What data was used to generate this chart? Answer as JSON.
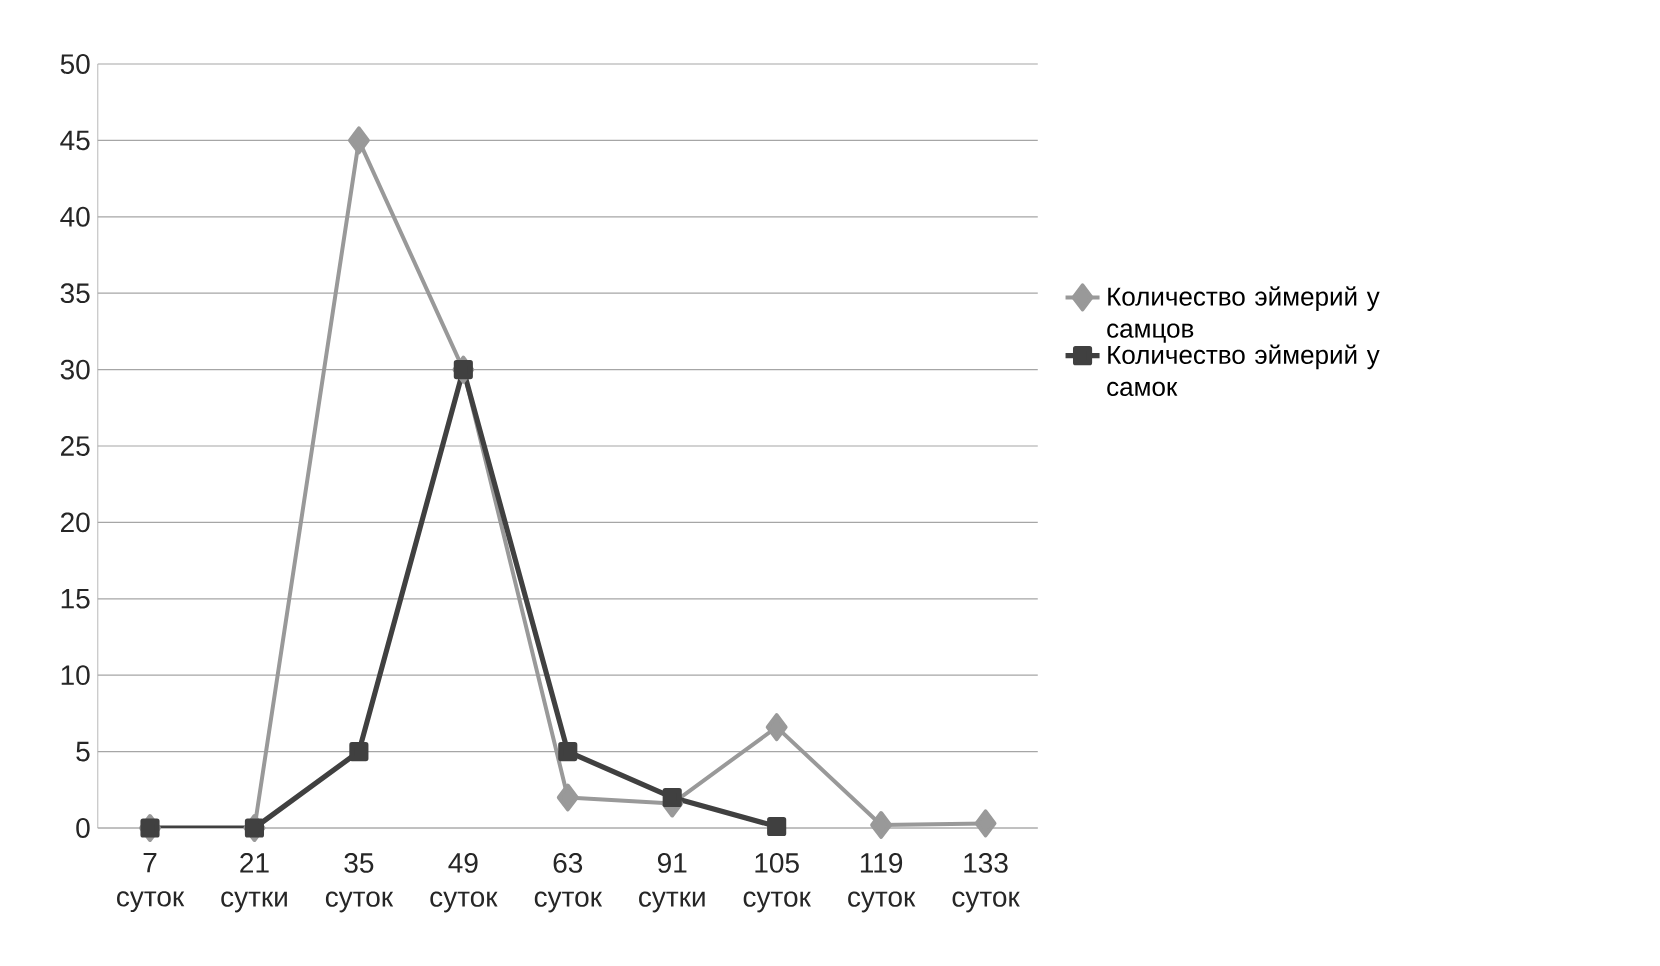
{
  "chart_data": {
    "type": "line",
    "categories": [
      "7 суток",
      "21 сутки",
      "35 суток",
      "49 суток",
      "63 суток",
      "91 сутки",
      "105 суток",
      "119 суток",
      "133 суток"
    ],
    "series": [
      {
        "name": "Количество эймерий у самцов",
        "color": "#999999",
        "marker": "diamond",
        "values": [
          0,
          0,
          45,
          30,
          2,
          1.6,
          6.6,
          0.2,
          0.3
        ]
      },
      {
        "name": "Количество эймерий у самок",
        "color": "#404040",
        "marker": "square",
        "values": [
          0,
          0,
          5,
          30,
          5,
          2,
          0.1,
          null,
          null
        ]
      }
    ],
    "ylim": [
      0,
      50
    ],
    "yticks": [
      0,
      5,
      10,
      15,
      20,
      25,
      30,
      35,
      40,
      45,
      50
    ],
    "grid": "y",
    "legend": "right"
  }
}
